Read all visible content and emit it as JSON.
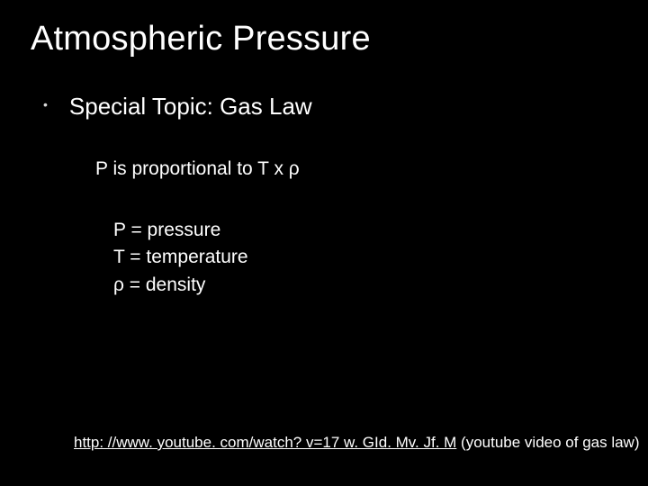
{
  "slide": {
    "title": "Atmospheric Pressure",
    "subtitle": "Special Topic: Gas Law",
    "proportional_line": "P is proportional to T x ρ",
    "definitions": {
      "p": "P = pressure",
      "t": "T = temperature",
      "rho": "ρ = density"
    },
    "link": {
      "url_text": "http: //www. youtube. com/watch? v=17 w. GId. Mv. Jf. M",
      "note": " (youtube video of gas law)"
    }
  },
  "style": {
    "background_color": "#000000",
    "text_color": "#ffffff",
    "title_fontsize": 38,
    "subtitle_fontsize": 26,
    "body_fontsize": 21,
    "link_fontsize": 17,
    "font_family": "Arial"
  }
}
